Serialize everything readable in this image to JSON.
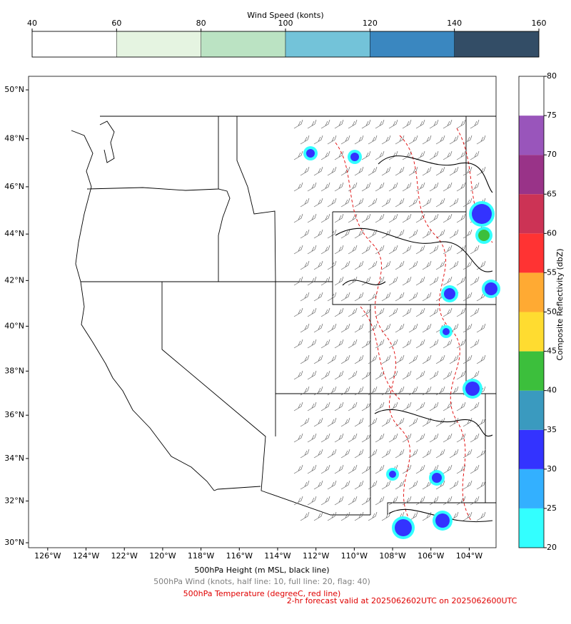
{
  "wind_colorbar": {
    "label": "Wind Speed (konts)",
    "ticks": [
      40,
      60,
      80,
      100,
      120,
      140,
      160
    ],
    "colors": [
      "#ffffff",
      "#e5f4e1",
      "#bbe3c3",
      "#73c3d9",
      "#3a87c0",
      "#334d66"
    ]
  },
  "reflectivity_colorbar": {
    "label": "Composite Reflectivity (dbZ)",
    "ticks": [
      20,
      25,
      30,
      35,
      40,
      45,
      50,
      55,
      60,
      65,
      70,
      75,
      80
    ],
    "colors": [
      "#33ffff",
      "#33b0ff",
      "#3333ff",
      "#3a9abf",
      "#3cbf3c",
      "#ffdc30",
      "#ffaa33",
      "#ff3333",
      "#cc3355",
      "#993388",
      "#9955bb",
      "#ffffff"
    ]
  },
  "map": {
    "xlim": [
      -127,
      -102.6
    ],
    "ylim": [
      29.76,
      50.55
    ],
    "lon_ticks": [
      {
        "value": -126,
        "label": "126°W"
      },
      {
        "value": -124,
        "label": "124°W"
      },
      {
        "value": -122,
        "label": "122°W"
      },
      {
        "value": -120,
        "label": "120°W"
      },
      {
        "value": -118,
        "label": "118°W"
      },
      {
        "value": -116,
        "label": "116°W"
      },
      {
        "value": -114,
        "label": "114°W"
      },
      {
        "value": -112,
        "label": "112°W"
      },
      {
        "value": -110,
        "label": "110°W"
      },
      {
        "value": -108,
        "label": "108°W"
      },
      {
        "value": -106,
        "label": "106°W"
      },
      {
        "value": -104,
        "label": "104°W"
      }
    ],
    "lat_ticks": [
      {
        "value": 30,
        "label": "30°N"
      },
      {
        "value": 32,
        "label": "32°N"
      },
      {
        "value": 34,
        "label": "34°N"
      },
      {
        "value": 36,
        "label": "36°N"
      },
      {
        "value": 38,
        "label": "38°N"
      },
      {
        "value": 40,
        "label": "40°N"
      },
      {
        "value": 42,
        "label": "42°N"
      },
      {
        "value": 44,
        "label": "44°N"
      },
      {
        "value": 46,
        "label": "46°N"
      },
      {
        "value": 48,
        "label": "48°N"
      },
      {
        "value": 50,
        "label": "50°N"
      }
    ]
  },
  "captions": {
    "height": "500hPa Height (m MSL, black line)",
    "wind": "500hPa Wind (knots, half line: 10, full line: 20, flag: 40)",
    "temperature": "500hPa Temperature (degreeC, red line)",
    "forecast": "2-hr forecast valid at 2025062602UTC on 2025062600UTC"
  }
}
